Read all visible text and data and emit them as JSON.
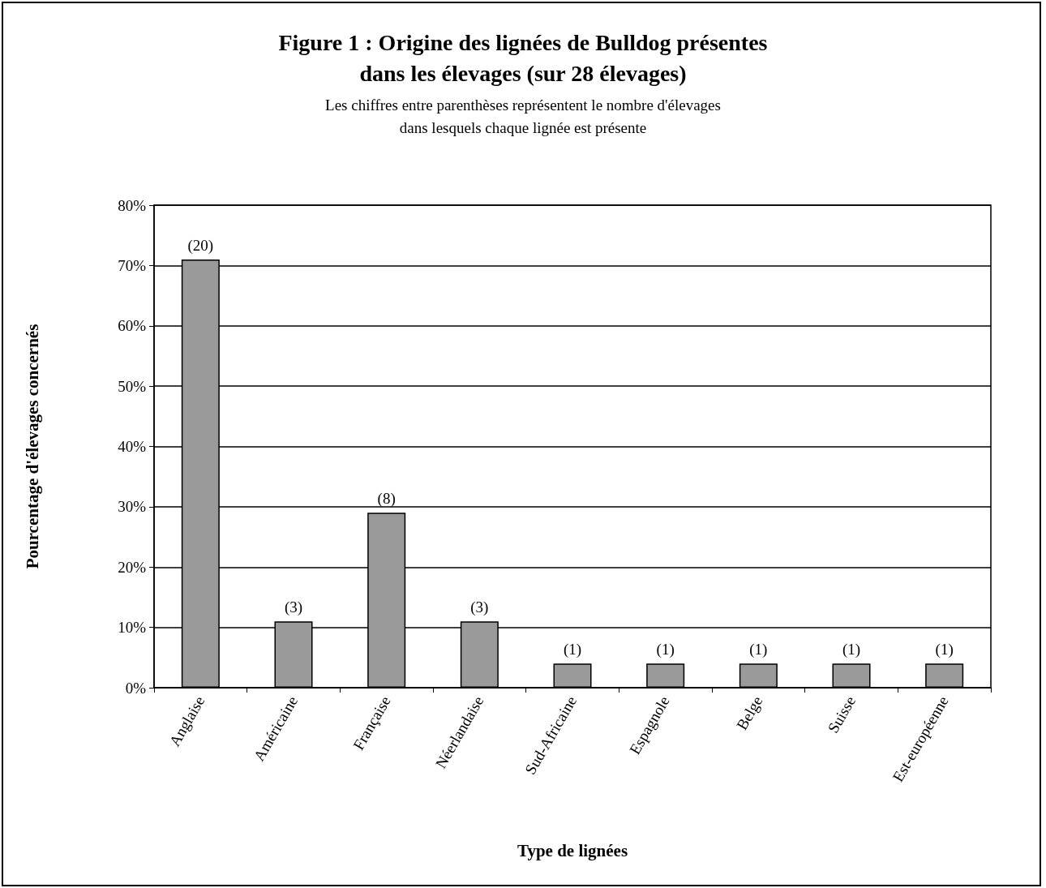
{
  "chart_data": {
    "type": "bar",
    "title": "Figure 1 : Origine des lignées de Bulldog présentes\ndans les élevages (sur 28 élevages)",
    "subtitle": "Les chiffres entre parenthèses représentent le nombre d'élevages\ndans lesquels chaque lignée est présente",
    "xlabel": "Type de lignées",
    "ylabel": "Pourcentage d'élevages concernés",
    "categories": [
      "Anglaise",
      "Américaine",
      "Française",
      "Néerlandaise",
      "Sud-Africaine",
      "Espagnole",
      "Belge",
      "Suisse",
      "Est-européenne"
    ],
    "values": [
      71,
      11,
      29,
      11,
      4,
      4,
      4,
      4,
      4
    ],
    "annotations": [
      {
        "text": "(20)",
        "x": "Anglaise",
        "y": 71
      },
      {
        "text": "(3)",
        "x": "Américaine",
        "y": 11
      },
      {
        "text": "(8)",
        "x": "Française",
        "y": 29
      },
      {
        "text": "(3)",
        "x": "Néerlandaise",
        "y": 11
      },
      {
        "text": "(1)",
        "x": "Sud-Africaine",
        "y": 4
      },
      {
        "text": "(1)",
        "x": "Espagnole",
        "y": 4
      },
      {
        "text": "(1)",
        "x": "Belge",
        "y": 4
      },
      {
        "text": "(1)",
        "x": "Suisse",
        "y": 4
      },
      {
        "text": "(1)",
        "x": "Est-européenne",
        "y": 4
      }
    ],
    "color": "#9a9a9a",
    "ylim": [
      0,
      80
    ],
    "yticks": [
      {
        "value": 0,
        "label": "0%"
      },
      {
        "value": 10,
        "label": "10%"
      },
      {
        "value": 20,
        "label": "20%"
      },
      {
        "value": 30,
        "label": "30%"
      },
      {
        "value": 40,
        "label": "40%"
      },
      {
        "value": 50,
        "label": "50%"
      },
      {
        "value": 60,
        "label": "60%"
      },
      {
        "value": 70,
        "label": "70%"
      },
      {
        "value": 80,
        "label": "80%"
      }
    ],
    "grid": "y"
  }
}
